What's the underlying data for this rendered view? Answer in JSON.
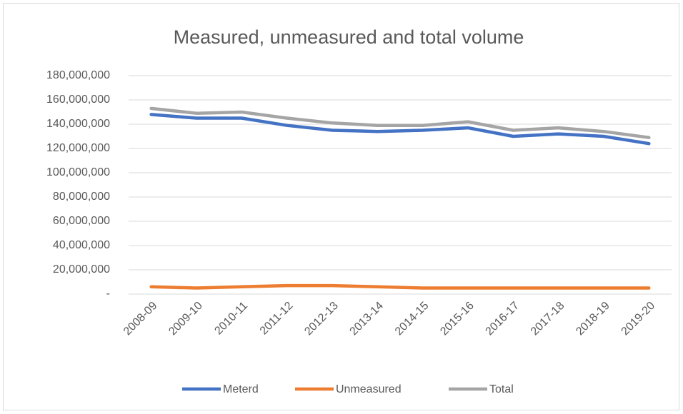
{
  "chart_data": {
    "type": "line",
    "title": "Measured, unmeasured and total volume",
    "categories": [
      "2008-09",
      "2009-10",
      "2010-11",
      "2011-12",
      "2012-13",
      "2013-14",
      "2014-15",
      "2015-16",
      "2016-17",
      "2017-18",
      "2018-19",
      "2019-20"
    ],
    "series": [
      {
        "name": "Meterd",
        "color": "#4472c4",
        "values": [
          148000000,
          145000000,
          145000000,
          139000000,
          135000000,
          134000000,
          135000000,
          137000000,
          130000000,
          132000000,
          130000000,
          124000000
        ]
      },
      {
        "name": "Unmeasured",
        "color": "#ed7d31",
        "values": [
          6000000,
          5000000,
          6000000,
          7000000,
          7000000,
          6000000,
          5000000,
          5000000,
          5000000,
          5000000,
          5000000,
          5000000
        ]
      },
      {
        "name": "Total",
        "color": "#a5a5a5",
        "values": [
          153000000,
          149000000,
          150000000,
          145000000,
          141000000,
          139000000,
          139000000,
          142000000,
          135000000,
          137000000,
          134000000,
          129000000
        ]
      }
    ],
    "ylim": [
      0,
      180000000
    ],
    "yticks": [
      {
        "value": 0,
        "label": "-"
      },
      {
        "value": 20000000,
        "label": "20,000,000"
      },
      {
        "value": 40000000,
        "label": "40,000,000"
      },
      {
        "value": 60000000,
        "label": "60,000,000"
      },
      {
        "value": 80000000,
        "label": "80,000,000"
      },
      {
        "value": 100000000,
        "label": "100,000,000"
      },
      {
        "value": 120000000,
        "label": "120,000,000"
      },
      {
        "value": 140000000,
        "label": "140,000,000"
      },
      {
        "value": 160000000,
        "label": "160,000,000"
      },
      {
        "value": 180000000,
        "label": "180,000,000"
      }
    ],
    "grid": true,
    "legend": "bottom"
  }
}
